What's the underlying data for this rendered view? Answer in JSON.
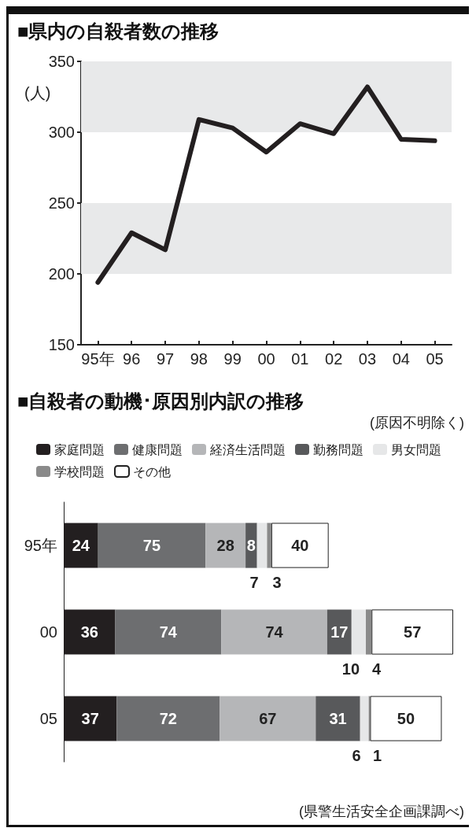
{
  "chart_data": [
    {
      "type": "line",
      "title": "■県内の自殺者数の推移",
      "ylabel": "(人)",
      "categories": [
        "95年",
        "96",
        "97",
        "98",
        "99",
        "00",
        "01",
        "02",
        "03",
        "04",
        "05"
      ],
      "series": [
        {
          "color": "#231f20",
          "values": [
            194,
            229,
            217,
            309,
            303,
            286,
            306,
            299,
            332,
            295,
            294
          ]
        }
      ],
      "ylim": [
        150,
        350
      ],
      "yticks": [
        150,
        200,
        250,
        300,
        350
      ],
      "bands": [
        {
          "axis": "y",
          "from": 200,
          "to": 250,
          "color": "#e8e9ea"
        },
        {
          "axis": "y",
          "from": 300,
          "to": 350,
          "color": "#e8e9ea"
        }
      ],
      "marker": "none",
      "line_style": "solid"
    },
    {
      "type": "bar",
      "orientation": "horizontal",
      "stacked": true,
      "title": "■自殺者の動機･原因別内訳の推移",
      "subtitle": "(原因不明除く)",
      "categories": [
        "95年",
        "00",
        "05"
      ],
      "series": [
        {
          "name": "家庭問題",
          "color": "#231f20",
          "values": [
            24,
            36,
            37
          ]
        },
        {
          "name": "健康問題",
          "color": "#6d6e70",
          "values": [
            75,
            74,
            72
          ]
        },
        {
          "name": "経済生活問題",
          "color": "#b5b6b8",
          "values": [
            28,
            74,
            67
          ]
        },
        {
          "name": "勤務問題",
          "color": "#58595b",
          "values": [
            8,
            17,
            31
          ]
        },
        {
          "name": "男女問題",
          "color": "#e6e7e8",
          "values": [
            7,
            10,
            6
          ]
        },
        {
          "name": "学校問題",
          "color": "#8a8a8a",
          "values": [
            3,
            4,
            1
          ]
        },
        {
          "name": "その他",
          "color": "#ffffff",
          "values": [
            40,
            57,
            50
          ]
        }
      ],
      "data_labels": true,
      "legend": "top",
      "annotations": [
        "(県警生活安全企画課調べ)"
      ]
    }
  ]
}
